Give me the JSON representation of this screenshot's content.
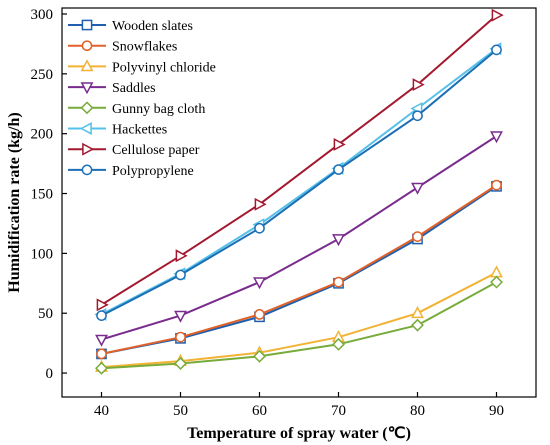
{
  "chart_data": {
    "type": "line",
    "xlabel": "Temperature of spray water (℃)",
    "ylabel": "Humidification rate (kg/h)",
    "x": [
      40,
      50,
      60,
      70,
      80,
      90
    ],
    "xlim": [
      35,
      95
    ],
    "ylim": [
      -20,
      305
    ],
    "xticks": [
      40,
      50,
      60,
      70,
      80,
      90
    ],
    "yticks": [
      0,
      50,
      100,
      150,
      200,
      250,
      300
    ],
    "grid": false,
    "legend_position": "top-left",
    "series": [
      {
        "name": "Wooden slates",
        "color": "#1f5fae",
        "marker": "square",
        "values": [
          16,
          29,
          47,
          75,
          112,
          156
        ]
      },
      {
        "name": "Snowflakes",
        "color": "#e0622a",
        "marker": "circle",
        "values": [
          16,
          30,
          49,
          76,
          114,
          157
        ]
      },
      {
        "name": "Polyvinyl chloride",
        "color": "#f2b233",
        "marker": "triangle-up",
        "values": [
          5,
          10,
          17,
          30,
          50,
          84
        ]
      },
      {
        "name": "Saddles",
        "color": "#7a2c8e",
        "marker": "triangle-down",
        "values": [
          28,
          48,
          76,
          112,
          155,
          198
        ]
      },
      {
        "name": "Gunny bag cloth",
        "color": "#77ab3a",
        "marker": "diamond",
        "values": [
          4,
          8,
          14,
          24,
          40,
          76
        ]
      },
      {
        "name": "Hackettes",
        "color": "#55c0e8",
        "marker": "triangle-left",
        "values": [
          49,
          83,
          124,
          171,
          221,
          271
        ]
      },
      {
        "name": "Cellulose paper",
        "color": "#a3192f",
        "marker": "triangle-right",
        "values": [
          57,
          98,
          141,
          191,
          241,
          299
        ]
      },
      {
        "name": "Polypropylene",
        "color": "#1c6fb5",
        "marker": "circle",
        "values": [
          48,
          82,
          121,
          170,
          215,
          270
        ]
      }
    ]
  }
}
